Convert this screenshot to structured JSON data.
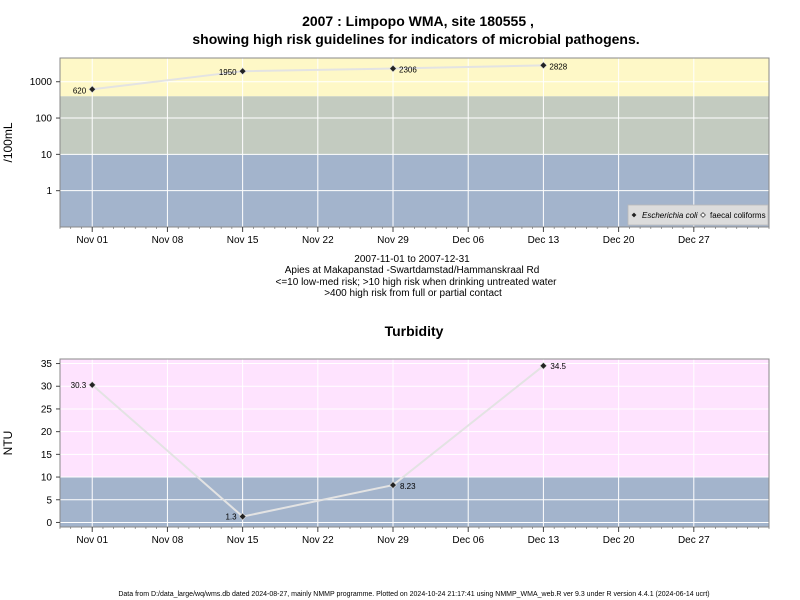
{
  "chart_data": [
    {
      "type": "line",
      "title": "2007 : Limpopo WMA, site 180555 ,",
      "subtitle": "showing high risk guidelines for indicators of microbial pathogens.",
      "ylabel": "/100mL",
      "y_scale": "log",
      "ylim": [
        0.1,
        4500
      ],
      "yticks": [
        1,
        10,
        100,
        1000
      ],
      "xlim": [
        "2007-10-29",
        "2008-01-03"
      ],
      "x_ticks": [
        {
          "date": "2007-11-01",
          "label": "Nov 01"
        },
        {
          "date": "2007-11-08",
          "label": "Nov 08"
        },
        {
          "date": "2007-11-15",
          "label": "Nov 15"
        },
        {
          "date": "2007-11-22",
          "label": "Nov 22"
        },
        {
          "date": "2007-11-29",
          "label": "Nov 29"
        },
        {
          "date": "2007-12-06",
          "label": "Dec 06"
        },
        {
          "date": "2007-12-13",
          "label": "Dec 13"
        },
        {
          "date": "2007-12-20",
          "label": "Dec 20"
        },
        {
          "date": "2007-12-27",
          "label": "Dec 27"
        }
      ],
      "bands": [
        {
          "from": 0.1,
          "to": 10,
          "color": "#a3b4cc"
        },
        {
          "from": 10,
          "to": 400,
          "color": "#c3cbc0"
        },
        {
          "from": 400,
          "to": 4500,
          "color": "#fef8c7"
        }
      ],
      "series": [
        {
          "name": "Escherichia coli",
          "marker": "filled-diamond",
          "x": [
            "2007-11-01",
            "2007-11-15",
            "2007-11-29",
            "2007-12-13"
          ],
          "y": [
            620,
            1950,
            2306,
            2828
          ],
          "labels": [
            "620",
            "1950",
            "2306",
            "2828"
          ]
        }
      ],
      "legend_entries": [
        "Escherichia coli",
        "faecal coliforms"
      ],
      "legend_position": "bottom-right",
      "notes": [
        "2007-11-01 to 2007-12-31",
        "Apies at Makapanstad -Swartdamstad/Hammanskraal Rd",
        "<=10 low-med risk; >10 high risk when drinking untreated water",
        ">400 high risk from full or partial contact"
      ]
    },
    {
      "type": "line",
      "title": "Turbidity",
      "ylabel": "NTU",
      "ylim": [
        -1,
        36
      ],
      "yticks": [
        0,
        5,
        10,
        15,
        20,
        25,
        30,
        35
      ],
      "xlim": [
        "2007-10-29",
        "2008-01-03"
      ],
      "bands": [
        {
          "from": -1,
          "to": 10,
          "color": "#a3b4cc"
        },
        {
          "from": 10,
          "to": 36,
          "color": "#fee3fe"
        }
      ],
      "series": [
        {
          "marker": "filled-diamond",
          "x": [
            "2007-11-01",
            "2007-11-15",
            "2007-11-29",
            "2007-12-13"
          ],
          "y": [
            30.3,
            1.3,
            8.23,
            34.5
          ],
          "labels": [
            "30.3",
            "1.3",
            "8.23",
            "34.5"
          ]
        }
      ]
    }
  ],
  "footer": "Data from D:/data_large/wq/wms.db dated 2024-08-27, mainly NMMP programme. Plotted on 2024-10-24 21:17:41 using NMMP_WMA_web.R ver 9.3 under R version 4.4.1 (2024-06-14 ucrt)"
}
